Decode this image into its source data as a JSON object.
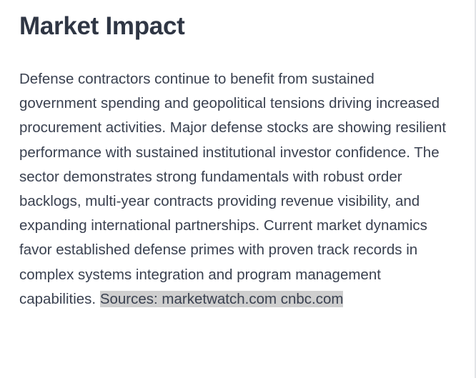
{
  "section": {
    "title": "Market Impact",
    "paragraph": "Defense contractors continue to benefit from sustained government spending and geopolitical tensions driving increased procurement activities. Major defense stocks are showing resilient performance with sustained institutional investor confidence. The sector demonstrates strong fundamentals with robust order backlogs, multi-year contracts providing revenue visibility, and expanding international partnerships. Current market dynamics favor established defense primes with proven track records in complex systems integration and program management capabilities.",
    "sources_text": "Sources: marketwatch.com cnbc.com"
  }
}
